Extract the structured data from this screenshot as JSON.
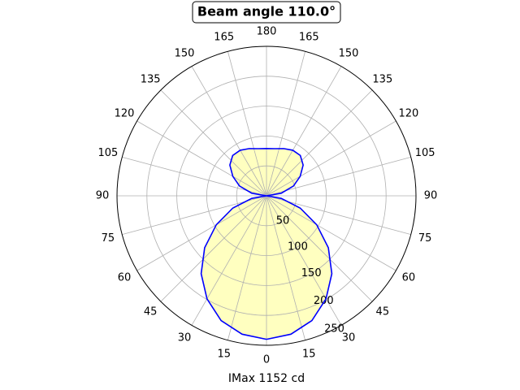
{
  "chart_data": {
    "type": "polar",
    "title": "Beam angle 110.0°",
    "xlabel": "IMax 1152 cd",
    "x": [
      0,
      10,
      20,
      30,
      40,
      50,
      60,
      70,
      80,
      90,
      100,
      110,
      120,
      130,
      140,
      150,
      160,
      170,
      180,
      190,
      200,
      210,
      220,
      230,
      240,
      250,
      260,
      270,
      280,
      290,
      300,
      310,
      320,
      330,
      340,
      350,
      360
    ],
    "series": [
      {
        "color": "#0000ff",
        "fill": "#ffffc0",
        "values": [
          240,
          235,
          222,
          199,
          170,
          135,
          97,
          60,
          25,
          0,
          25,
          48,
          65,
          80,
          88,
          88,
          84,
          80,
          79,
          80,
          84,
          88,
          88,
          80,
          65,
          48,
          25,
          0,
          25,
          60,
          97,
          135,
          170,
          199,
          222,
          235,
          240
        ]
      }
    ],
    "ylim": [
      0,
      250
    ],
    "yticks": [
      50,
      100,
      150,
      200,
      250
    ],
    "xticks": [
      0,
      15,
      30,
      45,
      60,
      75,
      90,
      105,
      120,
      135,
      150,
      165,
      180,
      {
        "value": 195,
        "label": "165"
      },
      {
        "value": 210,
        "label": "150"
      },
      {
        "value": 225,
        "label": "135"
      },
      {
        "value": 240,
        "label": "120"
      },
      {
        "value": 255,
        "label": "105"
      },
      {
        "value": 270,
        "label": "90"
      },
      {
        "value": 285,
        "label": "75"
      },
      {
        "value": 300,
        "label": "60"
      },
      {
        "value": 315,
        "label": "45"
      },
      {
        "value": 330,
        "label": "30"
      },
      {
        "value": 345,
        "label": "15"
      }
    ],
    "grid": true
  }
}
